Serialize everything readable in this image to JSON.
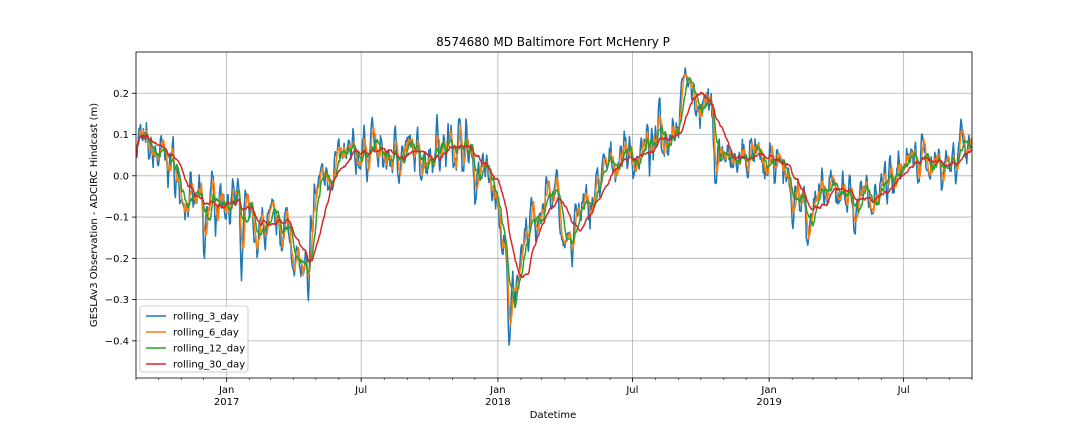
{
  "chart_data": {
    "type": "line",
    "title": "8574680 MD Baltimore Fort McHenry P",
    "xlabel": "Datetime",
    "ylabel": "GESLAv3 Observation - ADCIRC Hindcast (m)",
    "xlim": [
      "2016-09-01",
      "2019-10-01"
    ],
    "ylim": [
      -0.49,
      0.3
    ],
    "yticks": [
      -0.4,
      -0.3,
      -0.2,
      -0.1,
      0.0,
      0.1,
      0.2
    ],
    "ytick_labels": [
      "−0.4",
      "−0.3",
      "−0.2",
      "−0.1",
      "0.0",
      "0.1",
      "0.2"
    ],
    "xticks": [
      {
        "date": "2017-01-01",
        "label": "Jan",
        "sublabel": "2017"
      },
      {
        "date": "2017-07-01",
        "label": "Jul",
        "sublabel": ""
      },
      {
        "date": "2018-01-01",
        "label": "Jan",
        "sublabel": "2018"
      },
      {
        "date": "2018-07-01",
        "label": "Jul",
        "sublabel": ""
      },
      {
        "date": "2019-01-01",
        "label": "Jan",
        "sublabel": "2019"
      },
      {
        "date": "2019-07-01",
        "label": "Jul",
        "sublabel": ""
      }
    ],
    "grid": true,
    "legend_position": "lower-left",
    "anchors": [
      [
        "2016-09-01",
        0.1
      ],
      [
        "2016-09-15",
        0.06
      ],
      [
        "2016-10-01",
        0.05
      ],
      [
        "2016-10-20",
        0.03
      ],
      [
        "2016-11-01",
        -0.05
      ],
      [
        "2016-11-15",
        -0.07
      ],
      [
        "2016-12-01",
        -0.06
      ],
      [
        "2016-12-20",
        -0.05
      ],
      [
        "2017-01-05",
        -0.06
      ],
      [
        "2017-01-20",
        -0.07
      ],
      [
        "2017-02-01",
        -0.1
      ],
      [
        "2017-02-15",
        -0.13
      ],
      [
        "2017-03-01",
        -0.12
      ],
      [
        "2017-03-20",
        -0.12
      ],
      [
        "2017-04-01",
        -0.18
      ],
      [
        "2017-04-15",
        -0.25
      ],
      [
        "2017-04-25",
        -0.1
      ],
      [
        "2017-05-05",
        0.0
      ],
      [
        "2017-05-20",
        0.02
      ],
      [
        "2017-06-01",
        0.03
      ],
      [
        "2017-06-20",
        0.05
      ],
      [
        "2017-07-05",
        0.06
      ],
      [
        "2017-07-20",
        0.05
      ],
      [
        "2017-08-05",
        0.04
      ],
      [
        "2017-08-20",
        0.06
      ],
      [
        "2017-09-05",
        0.05
      ],
      [
        "2017-09-20",
        0.05
      ],
      [
        "2017-10-05",
        0.06
      ],
      [
        "2017-10-20",
        0.07
      ],
      [
        "2017-11-05",
        0.08
      ],
      [
        "2017-11-20",
        0.06
      ],
      [
        "2017-12-05",
        0.03
      ],
      [
        "2017-12-20",
        0.0
      ],
      [
        "2018-01-01",
        -0.1
      ],
      [
        "2018-01-10",
        -0.22
      ],
      [
        "2018-01-20",
        -0.28
      ],
      [
        "2018-02-01",
        -0.18
      ],
      [
        "2018-02-15",
        -0.1
      ],
      [
        "2018-03-01",
        -0.06
      ],
      [
        "2018-03-15",
        -0.08
      ],
      [
        "2018-04-01",
        -0.15
      ],
      [
        "2018-04-15",
        -0.1
      ],
      [
        "2018-05-01",
        -0.08
      ],
      [
        "2018-05-15",
        -0.02
      ],
      [
        "2018-06-01",
        0.03
      ],
      [
        "2018-06-15",
        0.05
      ],
      [
        "2018-07-01",
        0.04
      ],
      [
        "2018-07-20",
        0.07
      ],
      [
        "2018-08-01",
        0.05
      ],
      [
        "2018-08-15",
        0.11
      ],
      [
        "2018-09-01",
        0.14
      ],
      [
        "2018-09-10",
        0.2
      ],
      [
        "2018-09-25",
        0.18
      ],
      [
        "2018-10-10",
        0.17
      ],
      [
        "2018-10-25",
        0.06
      ],
      [
        "2018-11-10",
        0.02
      ],
      [
        "2018-11-25",
        0.04
      ],
      [
        "2018-12-10",
        0.04
      ],
      [
        "2018-12-25",
        0.02
      ],
      [
        "2019-01-10",
        0.03
      ],
      [
        "2019-01-25",
        0.0
      ],
      [
        "2019-02-10",
        -0.05
      ],
      [
        "2019-02-25",
        -0.07
      ],
      [
        "2019-03-10",
        -0.06
      ],
      [
        "2019-03-25",
        -0.04
      ],
      [
        "2019-04-10",
        -0.03
      ],
      [
        "2019-04-25",
        -0.05
      ],
      [
        "2019-05-10",
        -0.06
      ],
      [
        "2019-05-25",
        -0.03
      ],
      [
        "2019-06-10",
        0.0
      ],
      [
        "2019-06-25",
        0.02
      ],
      [
        "2019-07-10",
        0.03
      ],
      [
        "2019-07-25",
        0.04
      ],
      [
        "2019-08-10",
        0.04
      ],
      [
        "2019-08-25",
        0.03
      ],
      [
        "2019-09-10",
        0.05
      ],
      [
        "2019-09-20",
        0.08
      ],
      [
        "2019-10-01",
        0.09
      ]
    ],
    "spikes": [
      [
        "2016-12-01",
        -0.24
      ],
      [
        "2017-01-20",
        -0.31
      ],
      [
        "2017-02-10",
        -0.2
      ],
      [
        "2017-04-20",
        -0.35
      ],
      [
        "2017-07-15",
        0.17
      ],
      [
        "2017-10-10",
        0.16
      ],
      [
        "2017-11-10",
        0.14
      ],
      [
        "2017-12-01",
        -0.08
      ],
      [
        "2018-01-15",
        -0.45
      ],
      [
        "2018-02-20",
        -0.18
      ],
      [
        "2018-03-20",
        0.06
      ],
      [
        "2018-04-10",
        -0.25
      ],
      [
        "2018-06-20",
        0.11
      ],
      [
        "2018-08-05",
        0.23
      ],
      [
        "2018-09-05",
        0.26
      ],
      [
        "2018-09-15",
        0.26
      ],
      [
        "2018-10-20",
        -0.05
      ],
      [
        "2019-02-01",
        -0.16
      ],
      [
        "2019-02-20",
        -0.19
      ],
      [
        "2019-04-25",
        -0.17
      ],
      [
        "2019-09-15",
        0.15
      ]
    ],
    "series": [
      {
        "name": "rolling_3_day",
        "window_days": 3,
        "color": "#1f77b4"
      },
      {
        "name": "rolling_6_day",
        "window_days": 6,
        "color": "#ff7f0e"
      },
      {
        "name": "rolling_12_day",
        "window_days": 12,
        "color": "#2ca02c"
      },
      {
        "name": "rolling_30_day",
        "window_days": 30,
        "color": "#d62728"
      }
    ]
  }
}
